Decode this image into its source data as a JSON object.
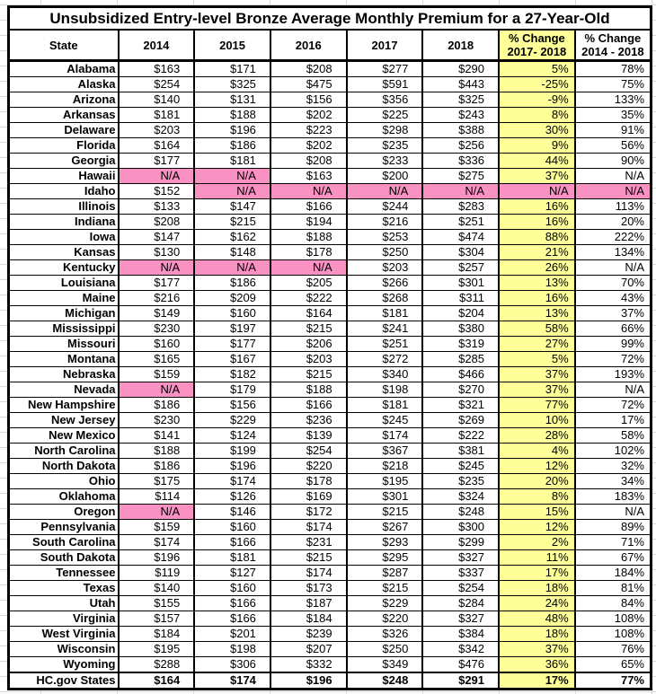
{
  "title": "Unsubsidized Entry-level Bronze Average Monthly Premium for a 27-Year-Old",
  "chart_data": {
    "type": "table",
    "colors": {
      "highlight_yellow": "#FFFF99",
      "na_pink": "#FA91C3",
      "border_black": "#000000",
      "gridline_gray": "#D8D8D8"
    },
    "columns": [
      {
        "key": "state",
        "label": "State"
      },
      {
        "key": "y2014",
        "label": "2014"
      },
      {
        "key": "y2015",
        "label": "2015"
      },
      {
        "key": "y2016",
        "label": "2016"
      },
      {
        "key": "y2017",
        "label": "2017"
      },
      {
        "key": "y2018",
        "label": "2018"
      },
      {
        "key": "chg-2017-2018",
        "label": "% Change",
        "label2": "2017- 2018",
        "yellow": true
      },
      {
        "key": "chg-2014-2018",
        "label": "% Change",
        "label2": "2014 - 2018"
      }
    ],
    "rows": [
      {
        "state": "Alabama",
        "values": [
          "$163",
          "$171",
          "$208",
          "$277",
          "$290",
          "5%",
          "78%"
        ]
      },
      {
        "state": "Alaska",
        "values": [
          "$254",
          "$325",
          "$475",
          "$591",
          "$443",
          "-25%",
          "75%"
        ]
      },
      {
        "state": "Arizona",
        "values": [
          "$140",
          "$131",
          "$156",
          "$356",
          "$325",
          "-9%",
          "133%"
        ]
      },
      {
        "state": "Arkansas",
        "values": [
          "$181",
          "$188",
          "$202",
          "$225",
          "$243",
          "8%",
          "35%"
        ]
      },
      {
        "state": "Delaware",
        "values": [
          "$203",
          "$196",
          "$223",
          "$298",
          "$388",
          "30%",
          "91%"
        ]
      },
      {
        "state": "Florida",
        "values": [
          "$164",
          "$186",
          "$202",
          "$235",
          "$256",
          "9%",
          "56%"
        ]
      },
      {
        "state": "Georgia",
        "values": [
          "$177",
          "$181",
          "$208",
          "$233",
          "$336",
          "44%",
          "90%"
        ]
      },
      {
        "state": "Hawaii",
        "values": [
          "N/A",
          "N/A",
          "$163",
          "$200",
          "$275",
          "37%",
          "N/A"
        ],
        "pink": [
          0,
          1
        ]
      },
      {
        "state": "Idaho",
        "values": [
          "$152",
          "N/A",
          "N/A",
          "N/A",
          "N/A",
          "N/A",
          "N/A"
        ],
        "pink": [
          1,
          2,
          3,
          4,
          5,
          6
        ]
      },
      {
        "state": "Illinois",
        "values": [
          "$133",
          "$147",
          "$166",
          "$244",
          "$283",
          "16%",
          "113%"
        ]
      },
      {
        "state": "Indiana",
        "values": [
          "$208",
          "$215",
          "$194",
          "$216",
          "$251",
          "16%",
          "20%"
        ]
      },
      {
        "state": "Iowa",
        "values": [
          "$147",
          "$162",
          "$188",
          "$253",
          "$474",
          "88%",
          "222%"
        ]
      },
      {
        "state": "Kansas",
        "values": [
          "$130",
          "$148",
          "$178",
          "$250",
          "$304",
          "21%",
          "134%"
        ]
      },
      {
        "state": "Kentucky",
        "values": [
          "N/A",
          "N/A",
          "N/A",
          "$203",
          "$257",
          "26%",
          "N/A"
        ],
        "pink": [
          0,
          1,
          2
        ]
      },
      {
        "state": "Louisiana",
        "values": [
          "$177",
          "$186",
          "$205",
          "$266",
          "$301",
          "13%",
          "70%"
        ]
      },
      {
        "state": "Maine",
        "values": [
          "$216",
          "$209",
          "$222",
          "$268",
          "$311",
          "16%",
          "43%"
        ]
      },
      {
        "state": "Michigan",
        "values": [
          "$149",
          "$160",
          "$164",
          "$181",
          "$204",
          "13%",
          "37%"
        ]
      },
      {
        "state": "Mississippi",
        "values": [
          "$230",
          "$197",
          "$215",
          "$241",
          "$380",
          "58%",
          "66%"
        ]
      },
      {
        "state": "Missouri",
        "values": [
          "$160",
          "$177",
          "$206",
          "$251",
          "$319",
          "27%",
          "99%"
        ]
      },
      {
        "state": "Montana",
        "values": [
          "$165",
          "$167",
          "$203",
          "$272",
          "$285",
          "5%",
          "72%"
        ]
      },
      {
        "state": "Nebraska",
        "values": [
          "$159",
          "$182",
          "$215",
          "$340",
          "$466",
          "37%",
          "193%"
        ]
      },
      {
        "state": "Nevada",
        "values": [
          "N/A",
          "$179",
          "$188",
          "$198",
          "$270",
          "37%",
          "N/A"
        ],
        "pink": [
          0
        ]
      },
      {
        "state": "New Hampshire",
        "values": [
          "$186",
          "$156",
          "$166",
          "$181",
          "$321",
          "77%",
          "72%"
        ]
      },
      {
        "state": "New Jersey",
        "values": [
          "$230",
          "$229",
          "$236",
          "$245",
          "$269",
          "10%",
          "17%"
        ]
      },
      {
        "state": "New Mexico",
        "values": [
          "$141",
          "$124",
          "$139",
          "$174",
          "$222",
          "28%",
          "58%"
        ]
      },
      {
        "state": "North Carolina",
        "values": [
          "$188",
          "$199",
          "$254",
          "$367",
          "$381",
          "4%",
          "102%"
        ]
      },
      {
        "state": "North Dakota",
        "values": [
          "$186",
          "$196",
          "$220",
          "$218",
          "$245",
          "12%",
          "32%"
        ]
      },
      {
        "state": "Ohio",
        "values": [
          "$175",
          "$174",
          "$178",
          "$195",
          "$235",
          "20%",
          "34%"
        ]
      },
      {
        "state": "Oklahoma",
        "values": [
          "$114",
          "$126",
          "$169",
          "$301",
          "$324",
          "8%",
          "183%"
        ]
      },
      {
        "state": "Oregon",
        "values": [
          "N/A",
          "$146",
          "$172",
          "$215",
          "$248",
          "15%",
          "N/A"
        ],
        "pink": [
          0
        ]
      },
      {
        "state": "Pennsylvania",
        "values": [
          "$159",
          "$160",
          "$174",
          "$267",
          "$300",
          "12%",
          "89%"
        ]
      },
      {
        "state": "South Carolina",
        "values": [
          "$174",
          "$166",
          "$231",
          "$293",
          "$299",
          "2%",
          "71%"
        ]
      },
      {
        "state": "South Dakota",
        "values": [
          "$196",
          "$181",
          "$215",
          "$295",
          "$327",
          "11%",
          "67%"
        ]
      },
      {
        "state": "Tennessee",
        "values": [
          "$119",
          "$127",
          "$174",
          "$287",
          "$337",
          "17%",
          "184%"
        ]
      },
      {
        "state": "Texas",
        "values": [
          "$140",
          "$160",
          "$173",
          "$215",
          "$254",
          "18%",
          "81%"
        ]
      },
      {
        "state": "Utah",
        "values": [
          "$155",
          "$166",
          "$187",
          "$229",
          "$284",
          "24%",
          "84%"
        ]
      },
      {
        "state": "Virginia",
        "values": [
          "$157",
          "$166",
          "$184",
          "$220",
          "$327",
          "48%",
          "108%"
        ]
      },
      {
        "state": "West Virginia",
        "values": [
          "$184",
          "$201",
          "$239",
          "$326",
          "$384",
          "18%",
          "108%"
        ]
      },
      {
        "state": "Wisconsin",
        "values": [
          "$195",
          "$198",
          "$207",
          "$250",
          "$342",
          "37%",
          "76%"
        ]
      },
      {
        "state": "Wyoming",
        "values": [
          "$288",
          "$306",
          "$332",
          "$349",
          "$476",
          "36%",
          "65%"
        ]
      },
      {
        "state": "HC.gov States",
        "values": [
          "$164",
          "$174",
          "$196",
          "$248",
          "$291",
          "17%",
          "77%"
        ],
        "total": true
      }
    ]
  }
}
